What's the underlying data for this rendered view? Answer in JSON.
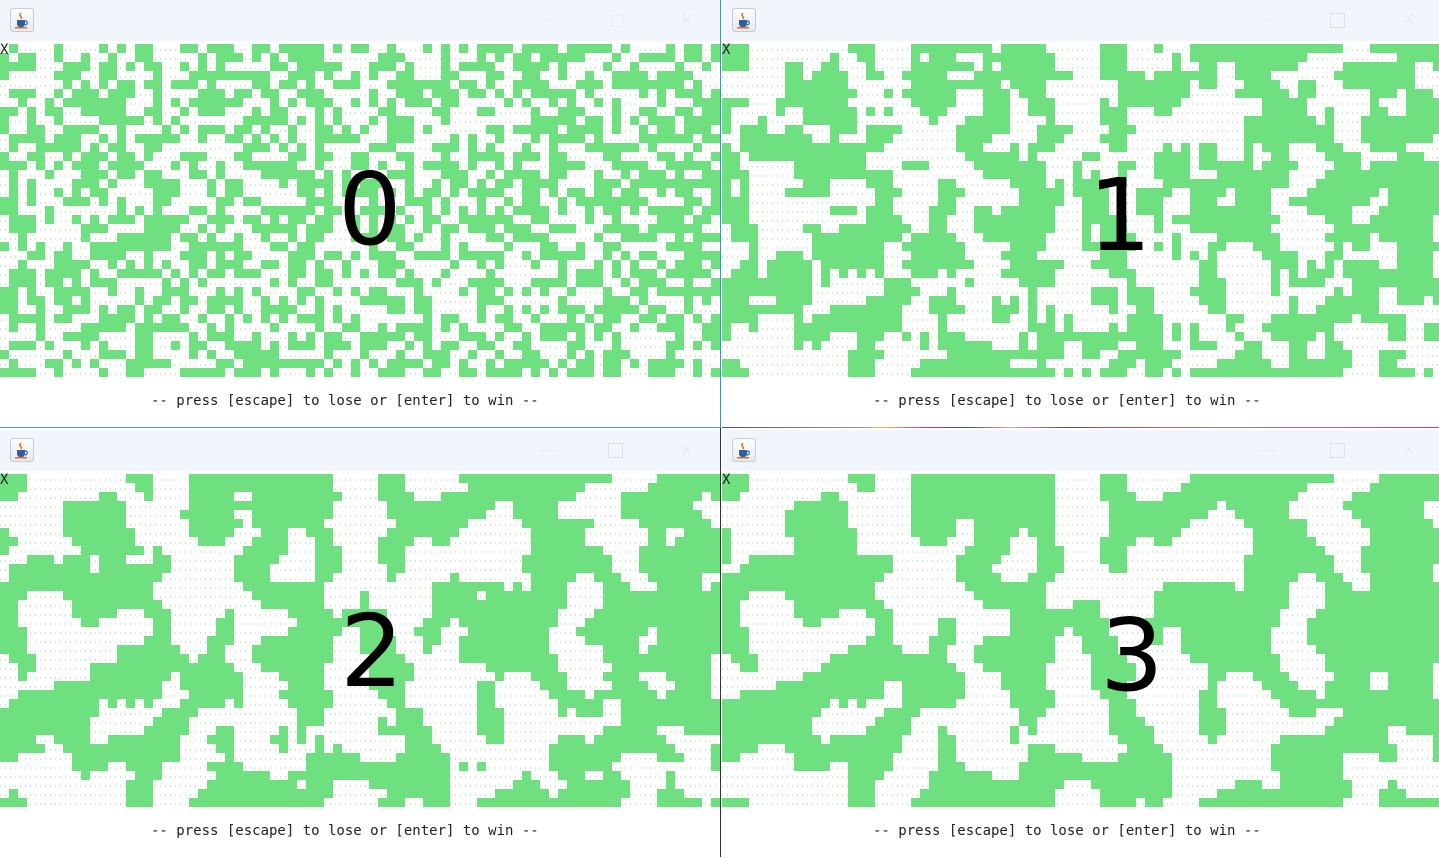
{
  "windows": [
    {
      "generation": "0",
      "marker": "X",
      "status": "-- press [escape] to lose or [enter] to win --"
    },
    {
      "generation": "1",
      "marker": "X",
      "status": "-- press [escape] to lose or [enter] to win --"
    },
    {
      "generation": "2",
      "marker": "X",
      "status": "-- press [escape] to lose or [enter] to win --"
    },
    {
      "generation": "3",
      "marker": "X",
      "status": "-- press [escape] to lose or [enter] to win --"
    }
  ],
  "colors": {
    "alive": "#6fe07f",
    "dead_dot": "#7fd98a",
    "titlebar": "#f1f5fc"
  },
  "grid": {
    "cols": 80,
    "rows": 37,
    "alive_density": [
      0.52,
      0.5,
      0.46,
      0.44
    ]
  },
  "icons": {
    "app": "java-cup-icon",
    "minimize": "minimize-icon",
    "maximize": "maximize-icon",
    "close": "close-icon"
  }
}
